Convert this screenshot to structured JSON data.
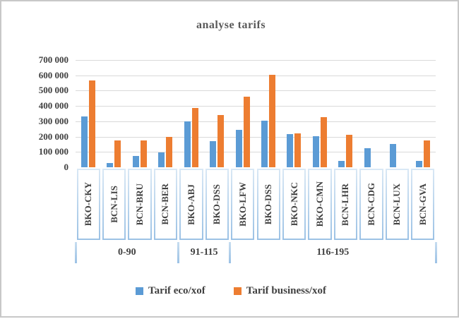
{
  "chart_data": {
    "type": "bar",
    "title": "analyse tarifs",
    "categories": [
      "BKO-CKY",
      "BCN-LIS",
      "BCN-BRU",
      "BCN-BER",
      "BKO-ABJ",
      "BKO-DSS",
      "BKO-LFW",
      "BKO-DSS",
      "BKO-NKC",
      "BKO-CMN",
      "BCN-LHR",
      "BCN-CDG",
      "BCN-LUX",
      "BCN-GVA"
    ],
    "category_groups": [
      {
        "label": "0-90",
        "start_index": 0,
        "count": 4
      },
      {
        "label": "91-115",
        "start_index": 4,
        "count": 2
      },
      {
        "label": "116-195",
        "start_index": 6,
        "count": 8
      }
    ],
    "series": [
      {
        "name": "Tarif eco/xof",
        "color": "#5B9BD5",
        "values": [
          330000,
          30000,
          75000,
          95000,
          300000,
          170000,
          245000,
          305000,
          215000,
          205000,
          40000,
          125000,
          150000,
          40000
        ]
      },
      {
        "name": "Tarif business/xof",
        "color": "#ED7D31",
        "values": [
          565000,
          175000,
          175000,
          200000,
          385000,
          340000,
          460000,
          605000,
          220000,
          325000,
          210000,
          0,
          0,
          175000
        ]
      }
    ],
    "ylim": [
      0,
      700000
    ],
    "ytick_interval": 100000,
    "yticks": [
      {
        "value": 0,
        "label": "0"
      },
      {
        "value": 100000,
        "label": "100 000"
      },
      {
        "value": 200000,
        "label": "200 000"
      },
      {
        "value": 300000,
        "label": "300 000"
      },
      {
        "value": 400000,
        "label": "400 000"
      },
      {
        "value": 500000,
        "label": "500 000"
      },
      {
        "value": 600000,
        "label": "600 000"
      },
      {
        "value": 700000,
        "label": "700 000"
      }
    ],
    "grid": true,
    "legend_position": "bottom",
    "xlabel": "",
    "ylabel": ""
  },
  "colors": {
    "bar_eco": "#5B9BD5",
    "bar_business": "#ED7D31",
    "gridline": "#D9D9D9",
    "cell_border": "#A9CBE8",
    "axis_text": "#404040",
    "title_text": "#595959",
    "frame_border": "#C8C8C8"
  }
}
